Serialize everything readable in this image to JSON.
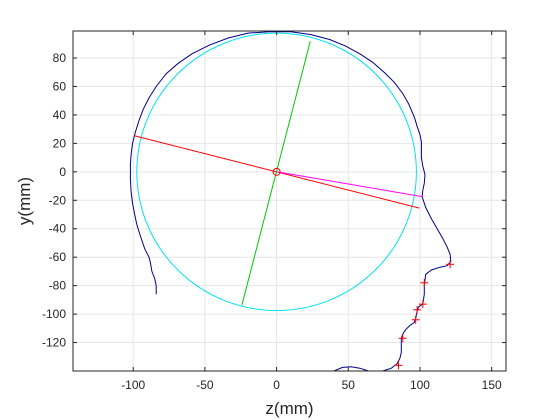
{
  "chart_data": {
    "type": "line",
    "xlabel": "z(mm)",
    "ylabel": "y(mm)",
    "xlim": [
      -142,
      160
    ],
    "ylim": [
      -140,
      99
    ],
    "grid": true,
    "box": true,
    "xticks": [
      -100,
      -50,
      0,
      50,
      100,
      150
    ],
    "yticks": [
      -120,
      -100,
      -80,
      -60,
      -40,
      -20,
      0,
      20,
      40,
      60,
      80
    ],
    "colors": {
      "outline": "#00008b",
      "fitted_circle": "#00e5ee",
      "major_axis": "#ff0000",
      "minor_axis": "#00c800",
      "center_to_point": "#ff00ff",
      "markers": "#ff0000",
      "grid": "#e6e6e6",
      "axes": "#262626"
    },
    "circle": {
      "center": [
        0,
        0
      ],
      "radius": 97.5
    },
    "center_marker": [
      0,
      0
    ],
    "major_axis_line": [
      [
        -99.5,
        25.5
      ],
      [
        99.5,
        -25.5
      ]
    ],
    "minor_axis_line": [
      [
        -24.2,
        -93.6
      ],
      [
        23.5,
        91.8
      ]
    ],
    "center_to_point_line": [
      [
        0,
        0
      ],
      [
        102,
        -17.5
      ]
    ],
    "outline_upper": [
      [
        -84,
        -86
      ],
      [
        -84,
        -80
      ],
      [
        -85,
        -75
      ],
      [
        -87,
        -70
      ],
      [
        -88,
        -64
      ],
      [
        -89,
        -60
      ],
      [
        -92,
        -54
      ],
      [
        -94,
        -48
      ],
      [
        -96,
        -42
      ],
      [
        -97.5,
        -37
      ],
      [
        -99,
        -30
      ],
      [
        -100.5,
        -22
      ],
      [
        -101.5,
        -14
      ],
      [
        -102,
        -5
      ],
      [
        -102,
        5
      ],
      [
        -101.5,
        12
      ],
      [
        -100.5,
        20
      ],
      [
        -98.5,
        28
      ],
      [
        -96,
        36
      ],
      [
        -93,
        44
      ],
      [
        -89,
        52
      ],
      [
        -84,
        60
      ],
      [
        -77,
        69
      ],
      [
        -69,
        76
      ],
      [
        -59,
        83
      ],
      [
        -47,
        89
      ],
      [
        -34,
        94
      ],
      [
        -20,
        97.5
      ],
      [
        -5,
        98.5
      ],
      [
        10,
        98.5
      ],
      [
        24,
        96.5
      ],
      [
        37,
        93
      ],
      [
        48,
        88.5
      ],
      [
        58,
        83
      ],
      [
        67,
        77
      ],
      [
        75,
        70
      ],
      [
        82,
        63
      ],
      [
        88,
        55
      ],
      [
        92,
        48
      ],
      [
        95,
        41
      ],
      [
        96.5,
        37
      ],
      [
        98,
        32
      ],
      [
        100,
        26
      ],
      [
        101,
        21
      ],
      [
        101,
        16
      ],
      [
        101,
        10
      ],
      [
        102,
        4
      ],
      [
        103.5,
        -2
      ],
      [
        103,
        -8
      ],
      [
        102,
        -13
      ],
      [
        101.5,
        -17.5
      ]
    ],
    "outline_lower": [
      [
        101.5,
        -17.5
      ],
      [
        104,
        -25
      ],
      [
        108,
        -33
      ],
      [
        112,
        -40
      ],
      [
        116,
        -47
      ],
      [
        119,
        -53
      ],
      [
        121,
        -58
      ],
      [
        121.5,
        -63
      ],
      [
        119,
        -66
      ],
      [
        114,
        -67
      ],
      [
        108,
        -69
      ],
      [
        104,
        -72
      ],
      [
        103.5,
        -76
      ],
      [
        103,
        -79
      ],
      [
        103,
        -86
      ],
      [
        102,
        -93
      ],
      [
        99,
        -95
      ],
      [
        98,
        -98
      ],
      [
        97,
        -103
      ],
      [
        96,
        -106
      ],
      [
        93,
        -108
      ],
      [
        90,
        -111
      ],
      [
        88,
        -114
      ],
      [
        87,
        -117
      ],
      [
        87,
        -122
      ],
      [
        87,
        -127
      ],
      [
        86,
        -131
      ],
      [
        84,
        -135
      ],
      [
        80,
        -138
      ],
      [
        74,
        -140
      ]
    ],
    "outline_bottom": [
      [
        40,
        -140
      ],
      [
        46,
        -137.5
      ],
      [
        52,
        -137
      ],
      [
        58,
        -138
      ],
      [
        64,
        -140
      ]
    ],
    "marker_points": [
      [
        121,
        -65
      ],
      [
        103,
        -78
      ],
      [
        102,
        -93
      ],
      [
        98,
        -97
      ],
      [
        97,
        -104
      ],
      [
        88,
        -117
      ],
      [
        85,
        -136
      ]
    ]
  }
}
